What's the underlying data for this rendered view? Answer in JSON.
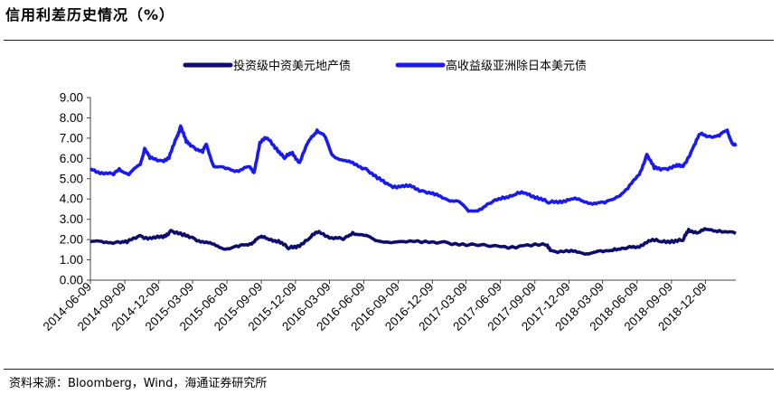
{
  "title": "信用利差历史情况（%）",
  "source": "资料来源：Bloomberg，Wind，海通证券研究所",
  "chart_data": {
    "type": "line",
    "title": "信用利差历史情况（%）",
    "xlabel": "",
    "ylabel": "",
    "ylim": [
      0,
      9
    ],
    "y_ticks": [
      "0.00",
      "1.00",
      "2.00",
      "3.00",
      "4.00",
      "5.00",
      "6.00",
      "7.00",
      "8.00",
      "9.00"
    ],
    "x_ticks": [
      "2014-06-09",
      "2014-09-09",
      "2014-12-09",
      "2015-03-09",
      "2015-06-09",
      "2015-09-09",
      "2015-12-09",
      "2016-03-09",
      "2016-06-09",
      "2016-09-09",
      "2016-12-09",
      "2017-03-09",
      "2017-06-09",
      "2017-09-09",
      "2017-12-09",
      "2018-03-09",
      "2018-06-09",
      "2018-09-09",
      "2018-12-09"
    ],
    "x_range": [
      "2014-06-09",
      "2019-02-28"
    ],
    "legend_position": "top-center",
    "series": [
      {
        "name": "投资级中资美元地产债",
        "color": "#0d0d6e",
        "points": [
          [
            "2014-06-09",
            1.9
          ],
          [
            "2014-07-15",
            1.85
          ],
          [
            "2014-08-20",
            1.9
          ],
          [
            "2014-09-15",
            1.85
          ],
          [
            "2014-10-20",
            2.2
          ],
          [
            "2014-11-20",
            2.05
          ],
          [
            "2014-12-20",
            2.1
          ],
          [
            "2015-01-10",
            2.45
          ],
          [
            "2015-02-10",
            2.2
          ],
          [
            "2015-03-10",
            2.1
          ],
          [
            "2015-04-10",
            1.85
          ],
          [
            "2015-05-10",
            1.7
          ],
          [
            "2015-06-10",
            1.55
          ],
          [
            "2015-07-10",
            1.65
          ],
          [
            "2015-08-10",
            1.8
          ],
          [
            "2015-09-01",
            2.1
          ],
          [
            "2015-09-25",
            2.05
          ],
          [
            "2015-10-25",
            1.95
          ],
          [
            "2015-11-20",
            1.55
          ],
          [
            "2015-12-15",
            1.7
          ],
          [
            "2016-01-15",
            2.05
          ],
          [
            "2016-02-10",
            2.4
          ],
          [
            "2016-03-15",
            2.1
          ],
          [
            "2016-04-15",
            2.0
          ],
          [
            "2016-05-10",
            2.35
          ],
          [
            "2016-06-10",
            2.2
          ],
          [
            "2016-07-10",
            1.95
          ],
          [
            "2016-09-10",
            1.9
          ],
          [
            "2016-11-10",
            1.85
          ],
          [
            "2017-01-10",
            1.9
          ],
          [
            "2017-03-10",
            1.7
          ],
          [
            "2017-06-10",
            1.65
          ],
          [
            "2017-08-10",
            1.7
          ],
          [
            "2017-10-10",
            1.7
          ],
          [
            "2017-10-25",
            1.45
          ],
          [
            "2017-12-10",
            1.4
          ],
          [
            "2018-01-10",
            1.35
          ],
          [
            "2018-02-10",
            1.35
          ],
          [
            "2018-03-10",
            1.4
          ],
          [
            "2018-04-10",
            1.55
          ],
          [
            "2018-05-10",
            1.55
          ],
          [
            "2018-06-10",
            1.65
          ],
          [
            "2018-07-10",
            1.95
          ],
          [
            "2018-08-10",
            1.9
          ],
          [
            "2018-09-10",
            1.95
          ],
          [
            "2018-10-10",
            1.95
          ],
          [
            "2018-10-25",
            2.5
          ],
          [
            "2018-11-20",
            2.35
          ],
          [
            "2018-12-15",
            2.5
          ],
          [
            "2019-01-15",
            2.45
          ],
          [
            "2019-02-28",
            2.3
          ]
        ]
      },
      {
        "name": "高收益级亚洲除日本美元债",
        "color": "#1a1aee",
        "points": [
          [
            "2014-06-09",
            5.5
          ],
          [
            "2014-07-10",
            5.3
          ],
          [
            "2014-08-10",
            5.2
          ],
          [
            "2014-08-25",
            5.5
          ],
          [
            "2014-09-20",
            5.2
          ],
          [
            "2014-10-20",
            5.7
          ],
          [
            "2014-11-01",
            6.5
          ],
          [
            "2014-11-15",
            6.0
          ],
          [
            "2014-12-15",
            5.9
          ],
          [
            "2015-01-05",
            6.0
          ],
          [
            "2015-01-25",
            7.0
          ],
          [
            "2015-02-05",
            7.6
          ],
          [
            "2015-02-20",
            6.8
          ],
          [
            "2015-03-10",
            6.6
          ],
          [
            "2015-04-05",
            6.3
          ],
          [
            "2015-04-15",
            6.7
          ],
          [
            "2015-05-05",
            5.6
          ],
          [
            "2015-06-05",
            5.5
          ],
          [
            "2015-07-05",
            5.4
          ],
          [
            "2015-08-05",
            5.6
          ],
          [
            "2015-08-20",
            5.3
          ],
          [
            "2015-09-05",
            6.8
          ],
          [
            "2015-09-25",
            7.0
          ],
          [
            "2015-10-20",
            6.5
          ],
          [
            "2015-11-10",
            6.0
          ],
          [
            "2015-12-01",
            6.3
          ],
          [
            "2015-12-20",
            5.8
          ],
          [
            "2016-01-15",
            6.9
          ],
          [
            "2016-02-05",
            7.4
          ],
          [
            "2016-02-25",
            7.1
          ],
          [
            "2016-03-15",
            6.2
          ],
          [
            "2016-04-15",
            5.9
          ],
          [
            "2016-05-15",
            5.7
          ],
          [
            "2016-06-15",
            5.5
          ],
          [
            "2016-07-15",
            5.0
          ],
          [
            "2016-08-15",
            4.7
          ],
          [
            "2016-09-15",
            4.6
          ],
          [
            "2016-10-15",
            4.6
          ],
          [
            "2016-11-15",
            4.4
          ],
          [
            "2016-12-15",
            4.2
          ],
          [
            "2017-01-15",
            4.0
          ],
          [
            "2017-02-15",
            3.9
          ],
          [
            "2017-03-15",
            3.4
          ],
          [
            "2017-04-15",
            3.5
          ],
          [
            "2017-05-15",
            3.8
          ],
          [
            "2017-06-15",
            4.1
          ],
          [
            "2017-07-15",
            4.2
          ],
          [
            "2017-08-15",
            4.3
          ],
          [
            "2017-09-15",
            4.1
          ],
          [
            "2017-10-15",
            3.8
          ],
          [
            "2017-11-15",
            3.9
          ],
          [
            "2017-12-15",
            4.0
          ],
          [
            "2018-01-15",
            3.9
          ],
          [
            "2018-02-15",
            3.8
          ],
          [
            "2018-03-15",
            3.8
          ],
          [
            "2018-04-15",
            4.1
          ],
          [
            "2018-05-15",
            4.5
          ],
          [
            "2018-06-15",
            5.2
          ],
          [
            "2018-07-05",
            6.2
          ],
          [
            "2018-07-25",
            5.5
          ],
          [
            "2018-08-20",
            5.5
          ],
          [
            "2018-09-20",
            5.6
          ],
          [
            "2018-10-10",
            5.6
          ],
          [
            "2018-11-05",
            6.5
          ],
          [
            "2018-11-25",
            7.2
          ],
          [
            "2018-12-20",
            7.1
          ],
          [
            "2019-01-15",
            7.1
          ],
          [
            "2019-02-05",
            7.4
          ],
          [
            "2019-02-20",
            6.7
          ],
          [
            "2019-02-28",
            6.6
          ]
        ]
      }
    ]
  }
}
